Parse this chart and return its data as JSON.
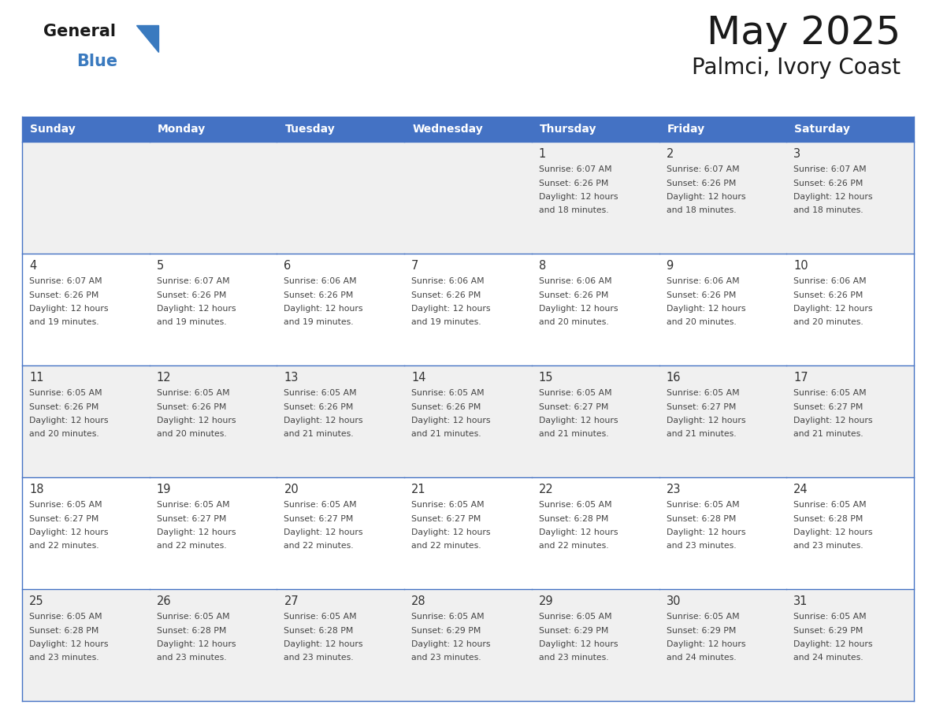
{
  "title": "May 2025",
  "subtitle": "Palmci, Ivory Coast",
  "header_bg": "#4472C4",
  "header_text_color": "#FFFFFF",
  "weekdays": [
    "Sunday",
    "Monday",
    "Tuesday",
    "Wednesday",
    "Thursday",
    "Friday",
    "Saturday"
  ],
  "cell_bg_even": "#F0F0F0",
  "cell_bg_odd": "#FFFFFF",
  "border_color": "#4472C4",
  "day_text_color": "#333333",
  "content_text_color": "#444444",
  "logo_general_color": "#1a1a1a",
  "blue_color": "#3a7abf",
  "calendar": [
    [
      null,
      null,
      null,
      null,
      {
        "day": 1,
        "sunrise": "6:07 AM",
        "sunset": "6:26 PM",
        "daylight": "12 hours and 18 minutes"
      },
      {
        "day": 2,
        "sunrise": "6:07 AM",
        "sunset": "6:26 PM",
        "daylight": "12 hours and 18 minutes"
      },
      {
        "day": 3,
        "sunrise": "6:07 AM",
        "sunset": "6:26 PM",
        "daylight": "12 hours and 18 minutes"
      }
    ],
    [
      {
        "day": 4,
        "sunrise": "6:07 AM",
        "sunset": "6:26 PM",
        "daylight": "12 hours and 19 minutes"
      },
      {
        "day": 5,
        "sunrise": "6:07 AM",
        "sunset": "6:26 PM",
        "daylight": "12 hours and 19 minutes"
      },
      {
        "day": 6,
        "sunrise": "6:06 AM",
        "sunset": "6:26 PM",
        "daylight": "12 hours and 19 minutes"
      },
      {
        "day": 7,
        "sunrise": "6:06 AM",
        "sunset": "6:26 PM",
        "daylight": "12 hours and 19 minutes"
      },
      {
        "day": 8,
        "sunrise": "6:06 AM",
        "sunset": "6:26 PM",
        "daylight": "12 hours and 20 minutes"
      },
      {
        "day": 9,
        "sunrise": "6:06 AM",
        "sunset": "6:26 PM",
        "daylight": "12 hours and 20 minutes"
      },
      {
        "day": 10,
        "sunrise": "6:06 AM",
        "sunset": "6:26 PM",
        "daylight": "12 hours and 20 minutes"
      }
    ],
    [
      {
        "day": 11,
        "sunrise": "6:05 AM",
        "sunset": "6:26 PM",
        "daylight": "12 hours and 20 minutes"
      },
      {
        "day": 12,
        "sunrise": "6:05 AM",
        "sunset": "6:26 PM",
        "daylight": "12 hours and 20 minutes"
      },
      {
        "day": 13,
        "sunrise": "6:05 AM",
        "sunset": "6:26 PM",
        "daylight": "12 hours and 21 minutes"
      },
      {
        "day": 14,
        "sunrise": "6:05 AM",
        "sunset": "6:26 PM",
        "daylight": "12 hours and 21 minutes"
      },
      {
        "day": 15,
        "sunrise": "6:05 AM",
        "sunset": "6:27 PM",
        "daylight": "12 hours and 21 minutes"
      },
      {
        "day": 16,
        "sunrise": "6:05 AM",
        "sunset": "6:27 PM",
        "daylight": "12 hours and 21 minutes"
      },
      {
        "day": 17,
        "sunrise": "6:05 AM",
        "sunset": "6:27 PM",
        "daylight": "12 hours and 21 minutes"
      }
    ],
    [
      {
        "day": 18,
        "sunrise": "6:05 AM",
        "sunset": "6:27 PM",
        "daylight": "12 hours and 22 minutes"
      },
      {
        "day": 19,
        "sunrise": "6:05 AM",
        "sunset": "6:27 PM",
        "daylight": "12 hours and 22 minutes"
      },
      {
        "day": 20,
        "sunrise": "6:05 AM",
        "sunset": "6:27 PM",
        "daylight": "12 hours and 22 minutes"
      },
      {
        "day": 21,
        "sunrise": "6:05 AM",
        "sunset": "6:27 PM",
        "daylight": "12 hours and 22 minutes"
      },
      {
        "day": 22,
        "sunrise": "6:05 AM",
        "sunset": "6:28 PM",
        "daylight": "12 hours and 22 minutes"
      },
      {
        "day": 23,
        "sunrise": "6:05 AM",
        "sunset": "6:28 PM",
        "daylight": "12 hours and 23 minutes"
      },
      {
        "day": 24,
        "sunrise": "6:05 AM",
        "sunset": "6:28 PM",
        "daylight": "12 hours and 23 minutes"
      }
    ],
    [
      {
        "day": 25,
        "sunrise": "6:05 AM",
        "sunset": "6:28 PM",
        "daylight": "12 hours and 23 minutes"
      },
      {
        "day": 26,
        "sunrise": "6:05 AM",
        "sunset": "6:28 PM",
        "daylight": "12 hours and 23 minutes"
      },
      {
        "day": 27,
        "sunrise": "6:05 AM",
        "sunset": "6:28 PM",
        "daylight": "12 hours and 23 minutes"
      },
      {
        "day": 28,
        "sunrise": "6:05 AM",
        "sunset": "6:29 PM",
        "daylight": "12 hours and 23 minutes"
      },
      {
        "day": 29,
        "sunrise": "6:05 AM",
        "sunset": "6:29 PM",
        "daylight": "12 hours and 23 minutes"
      },
      {
        "day": 30,
        "sunrise": "6:05 AM",
        "sunset": "6:29 PM",
        "daylight": "12 hours and 24 minutes"
      },
      {
        "day": 31,
        "sunrise": "6:05 AM",
        "sunset": "6:29 PM",
        "daylight": "12 hours and 24 minutes"
      }
    ]
  ]
}
